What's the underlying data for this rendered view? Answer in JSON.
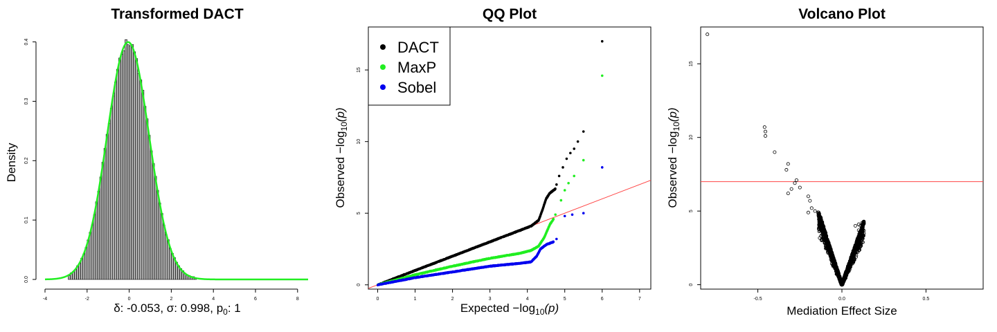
{
  "chart_data": [
    {
      "type": "histogram",
      "title": "Transformed DACT",
      "xlabel_prefix": "δ: -0.053, σ: 0.998, p",
      "xlabel_sub": "0",
      "xlabel_suffix": ": 1",
      "ylabel": "Density",
      "x_ticks": [
        "-4",
        "-2",
        "0",
        "2",
        "4",
        "6",
        "8"
      ],
      "y_ticks": [
        "0.0",
        "0.1",
        "0.2",
        "0.3",
        "0.4"
      ],
      "xlim": [
        -4,
        8.5
      ],
      "ylim": [
        0,
        0.41
      ],
      "bin_width": 0.1,
      "bin_range": [
        -2.9,
        3.2
      ],
      "density_params": {
        "mean": -0.053,
        "sd": 0.998
      },
      "colors": {
        "bars": "#b0b0b0",
        "bar_edge": "#000000",
        "curve": "#22ee22"
      }
    },
    {
      "type": "scatter",
      "title": "QQ Plot",
      "xlabel_prefix": "Expected  −log",
      "xlabel_sub": "10",
      "xlabel_suffix": "(p)",
      "ylabel_prefix": "Observed  −log",
      "ylabel_sub": "10",
      "ylabel_suffix": "(p)",
      "x_ticks": [
        "0",
        "1",
        "2",
        "3",
        "4",
        "5",
        "6",
        "7"
      ],
      "y_ticks": [
        "0",
        "5",
        "10",
        "15"
      ],
      "xlim": [
        -0.25,
        7.3
      ],
      "ylim": [
        -0.3,
        18.0
      ],
      "legend_position": "top-left",
      "reference_line": {
        "slope": 1,
        "intercept": 0,
        "color": "#ff4444"
      },
      "series": [
        {
          "name": "DACT",
          "color": "#000000",
          "curve": [
            [
              0,
              0
            ],
            [
              1,
              1
            ],
            [
              2,
              2
            ],
            [
              3,
              3
            ],
            [
              3.8,
              3.8
            ],
            [
              4.1,
              4.1
            ],
            [
              4.3,
              4.5
            ],
            [
              4.4,
              5.2
            ],
            [
              4.5,
              6.0
            ],
            [
              4.6,
              6.4
            ],
            [
              4.75,
              6.7
            ]
          ],
          "outliers": [
            [
              4.78,
              7.0
            ],
            [
              4.85,
              7.6
            ],
            [
              4.95,
              8.2
            ],
            [
              5.05,
              8.8
            ],
            [
              5.15,
              9.2
            ],
            [
              5.25,
              9.5
            ],
            [
              5.35,
              10.0
            ],
            [
              5.5,
              10.7
            ],
            [
              6.0,
              17.0
            ]
          ]
        },
        {
          "name": "MaxP",
          "color": "#22ee22",
          "curve": [
            [
              0,
              0
            ],
            [
              1,
              0.7
            ],
            [
              2,
              1.3
            ],
            [
              3,
              1.85
            ],
            [
              3.8,
              2.2
            ],
            [
              4.1,
              2.4
            ],
            [
              4.3,
              2.7
            ],
            [
              4.45,
              3.3
            ],
            [
              4.6,
              4.2
            ],
            [
              4.7,
              4.6
            ]
          ],
          "outliers": [
            [
              4.75,
              4.9
            ],
            [
              4.9,
              5.9
            ],
            [
              5.0,
              6.6
            ],
            [
              5.1,
              7.1
            ],
            [
              5.25,
              7.6
            ],
            [
              5.5,
              8.7
            ],
            [
              6.0,
              14.6
            ]
          ]
        },
        {
          "name": "Sobel",
          "color": "#0000ee",
          "curve": [
            [
              0,
              0
            ],
            [
              1,
              0.5
            ],
            [
              2,
              0.9
            ],
            [
              3,
              1.3
            ],
            [
              3.8,
              1.5
            ],
            [
              4.1,
              1.6
            ],
            [
              4.25,
              2.0
            ],
            [
              4.35,
              2.5
            ],
            [
              4.5,
              2.8
            ],
            [
              4.7,
              3.0
            ]
          ],
          "outliers": [
            [
              4.78,
              3.2
            ],
            [
              5.0,
              4.8
            ],
            [
              5.2,
              4.9
            ],
            [
              5.5,
              5.0
            ],
            [
              6.0,
              8.2
            ]
          ]
        }
      ]
    },
    {
      "type": "scatter",
      "title": "Volcano Plot",
      "xlabel": "Mediation Effect Size",
      "ylabel_prefix": "Observed  −log",
      "ylabel_sub": "10",
      "ylabel_suffix": "(p)",
      "x_ticks": [
        "-0.5",
        "0.0",
        "0.5"
      ],
      "y_ticks": [
        "0",
        "5",
        "10",
        "15"
      ],
      "xlim": [
        -0.84,
        0.84
      ],
      "ylim": [
        -0.3,
        17.5
      ],
      "threshold_line": {
        "y": 7,
        "color": "#ff4444"
      },
      "points_color": "#000000",
      "cloud_boundary": {
        "neg_tip": [
          -0.14,
          5.0
        ],
        "pos_tip": [
          0.13,
          4.3
        ]
      },
      "points": [
        [
          -0.8,
          17.0
        ],
        [
          -0.46,
          10.7
        ],
        [
          -0.455,
          10.4
        ],
        [
          -0.455,
          10.1
        ],
        [
          -0.4,
          9.0
        ],
        [
          -0.32,
          8.2
        ],
        [
          -0.33,
          7.8
        ],
        [
          -0.27,
          7.1
        ],
        [
          -0.28,
          6.9
        ],
        [
          -0.25,
          6.6
        ],
        [
          -0.3,
          6.5
        ],
        [
          -0.32,
          6.2
        ],
        [
          -0.2,
          6.0
        ],
        [
          -0.19,
          5.7
        ],
        [
          -0.18,
          5.2
        ],
        [
          -0.2,
          4.9
        ],
        [
          -0.16,
          5.0
        ],
        [
          0.08,
          4.0
        ],
        [
          0.1,
          4.1
        ],
        [
          0.11,
          4.0
        ],
        [
          0.12,
          4.2
        ],
        [
          0.1,
          3.7
        ],
        [
          0.12,
          3.5
        ]
      ]
    }
  ]
}
